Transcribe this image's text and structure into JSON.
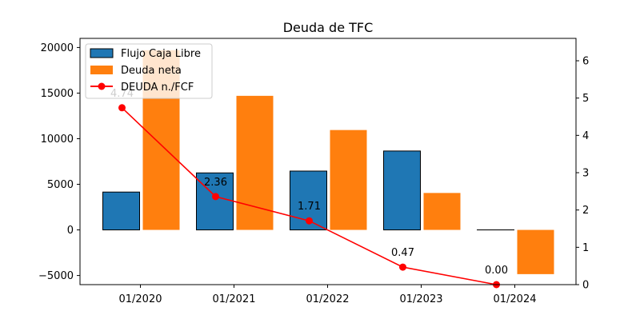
{
  "chart_data": {
    "type": "bar",
    "title": "Deuda de TFC",
    "categories": [
      "01/2020",
      "01/2021",
      "01/2022",
      "01/2023",
      "01/2024"
    ],
    "xlabel": "",
    "ylabel": "",
    "ylim": [
      -6000,
      21000
    ],
    "y2lim": [
      0,
      6.6
    ],
    "yticks": [
      -5000,
      0,
      5000,
      10000,
      15000,
      20000
    ],
    "y2ticks": [
      0,
      1,
      2,
      3,
      4,
      5,
      6
    ],
    "grid": false,
    "legend_position": "top-left",
    "series": [
      {
        "name": "Flujo Caja Libre",
        "type": "bar",
        "axis": "left",
        "color": "#1f77b4",
        "edgecolor": "#000000",
        "values": [
          4150,
          6250,
          6450,
          8650,
          0
        ]
      },
      {
        "name": "Deuda neta",
        "type": "bar",
        "axis": "left",
        "color": "#ff7f0e",
        "values": [
          19700,
          14700,
          10950,
          4050,
          -4850
        ]
      },
      {
        "name": "DEUDA n./FCF",
        "type": "line",
        "axis": "right",
        "color": "#ff0000",
        "marker": "circle",
        "values": [
          4.74,
          2.36,
          1.71,
          0.47,
          0.0
        ],
        "labels": [
          "4.74",
          "2.36",
          "1.71",
          "0.47",
          "0.00"
        ]
      }
    ]
  }
}
